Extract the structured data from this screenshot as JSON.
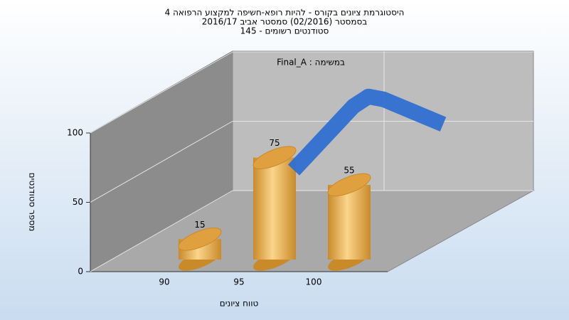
{
  "chart_data": {
    "type": "bar3d",
    "title": [
      "היסטוגרמת ציונים בקורס - להיות רופא-חשיפה למקצוע הרפואה 4",
      "בסמסטר  (02/2016)  סמסטר אביב 2016/17",
      "סטודנטים רשומים - 145"
    ],
    "annotation": "במשימה : Final_A",
    "xlabel": "טווח ציונים",
    "ylabel": "מספר סטודנטים",
    "categories": [
      "90",
      "95",
      "100"
    ],
    "values": [
      15,
      75,
      55
    ],
    "color": "#e0a040",
    "ylim": [
      0,
      100
    ],
    "yticks": [
      0,
      50,
      100
    ],
    "grid": true,
    "curve": {
      "x": [
        92,
        94,
        96,
        97,
        98,
        100,
        102
      ],
      "values": [
        22,
        45,
        68,
        75,
        73,
        64,
        55
      ],
      "color": "#2f6fd0"
    }
  }
}
